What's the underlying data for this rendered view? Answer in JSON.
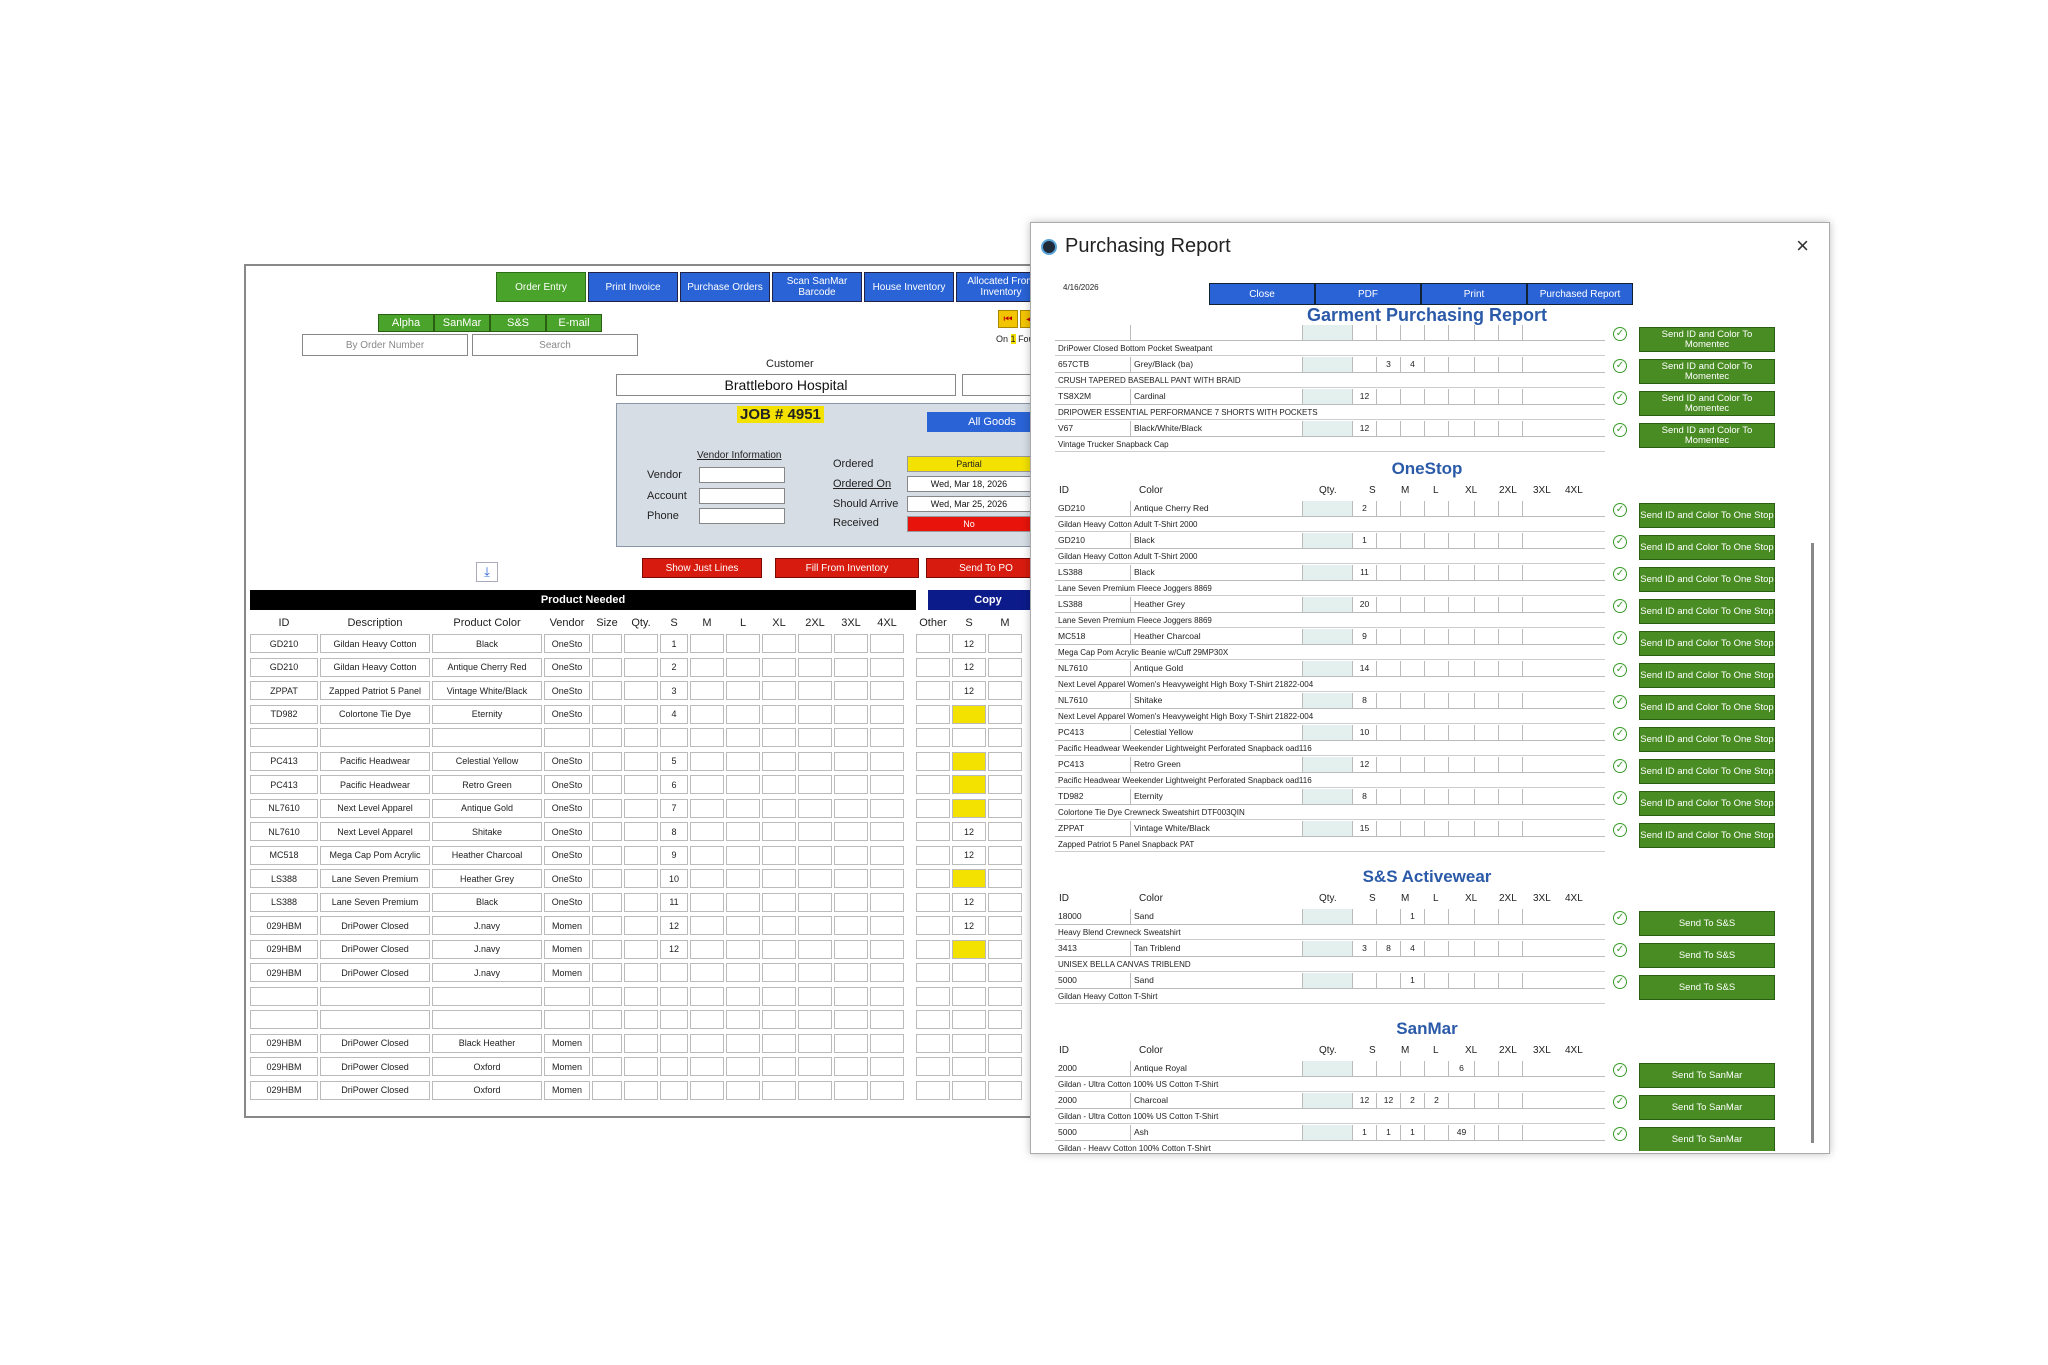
{
  "back": {
    "nav": [
      "Order Entry",
      "Print Invoice",
      "Purchase Orders",
      "Scan SanMar Barcode",
      "House Inventory",
      "Allocated From Inventory"
    ],
    "alpha": [
      "Alpha",
      "SanMar",
      "S&S",
      "E-mail"
    ],
    "search1": "By Order Number",
    "search2": "Search",
    "customer_label": "Customer",
    "customer": "Brattleboro Hospital",
    "job": "JOB # 4951",
    "all_goods": "All Goods",
    "on_text": "On",
    "on_num": "1",
    "four": "Four",
    "vendor_info": "Vendor Information",
    "vendor": "Vendor",
    "account": "Account",
    "phone": "Phone",
    "ordered": "Ordered",
    "ordered_val": "Partial",
    "ordered_on": "Ordered On",
    "ordered_on_val": "Wed, Mar 18, 2026",
    "should_arrive": "Should Arrive",
    "should_arrive_val": "Wed, Mar 25, 2026",
    "received": "Received",
    "received_val": "No",
    "show_lines": "Show Just Lines",
    "fill_inv": "Fill From Inventory",
    "send_po": "Send To PO",
    "product_needed": "Product Needed",
    "copy": "Copy",
    "headers": [
      "ID",
      "Description",
      "Product Color",
      "Vendor",
      "Size",
      "Qty.",
      "S",
      "M",
      "L",
      "XL",
      "2XL",
      "3XL",
      "4XL",
      "Other",
      "S",
      "M"
    ],
    "rows": [
      [
        "GD210",
        "Gildan Heavy Cotton",
        "Black",
        "OneSto",
        "1",
        "12",
        ""
      ],
      [
        "GD210",
        "Gildan Heavy Cotton",
        "Antique Cherry Red",
        "OneSto",
        "2",
        "12",
        ""
      ],
      [
        "ZPPAT",
        "Zapped Patriot 5 Panel",
        "Vintage White/Black",
        "OneSto",
        "3",
        "12",
        ""
      ],
      [
        "TD982",
        "Colortone Tie Dye",
        "Eternity",
        "OneSto",
        "4",
        "",
        "y"
      ],
      [
        "",
        "",
        "",
        "",
        "",
        "",
        ""
      ],
      [
        "PC413",
        "Pacific Headwear",
        "Celestial Yellow",
        "OneSto",
        "5",
        "",
        "y"
      ],
      [
        "PC413",
        "Pacific Headwear",
        "Retro Green",
        "OneSto",
        "6",
        "",
        "y"
      ],
      [
        "NL7610",
        "Next Level Apparel",
        "Antique Gold",
        "OneSto",
        "7",
        "",
        "y"
      ],
      [
        "NL7610",
        "Next Level Apparel",
        "Shitake",
        "OneSto",
        "8",
        "12",
        ""
      ],
      [
        "MC518",
        "Mega Cap Pom Acrylic",
        "Heather Charcoal",
        "OneSto",
        "9",
        "12",
        ""
      ],
      [
        "LS388",
        "Lane Seven Premium",
        "Heather Grey",
        "OneSto",
        "10",
        "",
        "y"
      ],
      [
        "LS388",
        "Lane Seven Premium",
        "Black",
        "OneSto",
        "11",
        "12",
        ""
      ],
      [
        "029HBM",
        "DriPower Closed",
        "J.navy",
        "Momen",
        "12",
        "12",
        ""
      ],
      [
        "029HBM",
        "DriPower Closed",
        "J.navy",
        "Momen",
        "12",
        "",
        "y"
      ],
      [
        "029HBM",
        "DriPower Closed",
        "J.navy",
        "Momen",
        "",
        "",
        ""
      ],
      [
        "",
        "",
        "",
        "",
        "",
        "",
        ""
      ],
      [
        "",
        "",
        "",
        "",
        "",
        "",
        ""
      ],
      [
        "029HBM",
        "DriPower Closed",
        "Black Heather",
        "Momen",
        "",
        "",
        ""
      ],
      [
        "029HBM",
        "DriPower Closed",
        "Oxford",
        "Momen",
        "",
        "",
        ""
      ],
      [
        "029HBM",
        "DriPower Closed",
        "Oxford",
        "Momen",
        "",
        "",
        ""
      ]
    ]
  },
  "modal": {
    "title": "Purchasing Report",
    "close": "×",
    "date": "4/16/2026",
    "toolbar": [
      "Close",
      "PDF",
      "Print",
      "Purchased Report"
    ],
    "report_title": "Garment Purchasing Report",
    "cols": [
      "ID",
      "Color",
      "Qty.",
      "S",
      "M",
      "L",
      "XL",
      "2XL",
      "3XL",
      "4XL"
    ],
    "top_items": [
      {
        "id": "",
        "color": "",
        "desc": "DriPower Closed Bottom Pocket Sweatpant",
        "s": "",
        "m": "",
        "l": "",
        "xl": "",
        "x2": "",
        "btn": "Send ID and Color To Momentec"
      },
      {
        "id": "657CTB",
        "color": "Grey/Black (ba)",
        "desc": "CRUSH TAPERED BASEBALL PANT WITH BRAID",
        "s": "",
        "m": "3",
        "l": "4",
        "xl": "",
        "x2": "",
        "btn": "Send ID and Color To Momentec"
      },
      {
        "id": "TS8X2M",
        "color": "Cardinal",
        "desc": "DRIPOWER ESSENTIAL PERFORMANCE 7 SHORTS WITH POCKETS",
        "s": "12",
        "m": "",
        "l": "",
        "xl": "",
        "x2": "",
        "btn": "Send ID and Color To Momentec"
      },
      {
        "id": "V67",
        "color": "Black/White/Black",
        "desc": "Vintage Trucker Snapback Cap",
        "s": "12",
        "m": "",
        "l": "",
        "xl": "",
        "x2": "",
        "btn": "Send ID and Color To Momentec"
      }
    ],
    "sections": [
      {
        "name": "OneStop",
        "items": [
          {
            "id": "GD210",
            "color": "Antique Cherry Red",
            "desc": "Gildan Heavy Cotton Adult T-Shirt 2000",
            "s": "2",
            "m": "",
            "l": "",
            "xl": "",
            "x2": "",
            "btn": "Send ID and Color To One Stop"
          },
          {
            "id": "GD210",
            "color": "Black",
            "desc": "Gildan Heavy Cotton Adult T-Shirt 2000",
            "s": "1",
            "m": "",
            "l": "",
            "xl": "",
            "x2": "",
            "btn": "Send ID and Color To One Stop"
          },
          {
            "id": "LS388",
            "color": "Black",
            "desc": "Lane Seven Premium Fleece Joggers 8869",
            "s": "11",
            "m": "",
            "l": "",
            "xl": "",
            "x2": "",
            "btn": "Send ID and Color To One Stop"
          },
          {
            "id": "LS388",
            "color": "Heather Grey",
            "desc": "Lane Seven Premium Fleece Joggers 8869",
            "s": "20",
            "m": "",
            "l": "",
            "xl": "",
            "x2": "",
            "btn": "Send ID and Color To One Stop"
          },
          {
            "id": "MC518",
            "color": "Heather Charcoal",
            "desc": "Mega Cap Pom Acrylic Beanie w/Cuff 29MP30X",
            "s": "9",
            "m": "",
            "l": "",
            "xl": "",
            "x2": "",
            "btn": "Send ID and Color To One Stop"
          },
          {
            "id": "NL7610",
            "color": "Antique Gold",
            "desc": "Next Level Apparel Women's Heavyweight High Boxy T-Shirt 21822-004",
            "s": "14",
            "m": "",
            "l": "",
            "xl": "",
            "x2": "",
            "btn": "Send ID and Color To One Stop"
          },
          {
            "id": "NL7610",
            "color": "Shitake",
            "desc": "Next Level Apparel Women's Heavyweight High Boxy T-Shirt 21822-004",
            "s": "8",
            "m": "",
            "l": "",
            "xl": "",
            "x2": "",
            "btn": "Send ID and Color To One Stop"
          },
          {
            "id": "PC413",
            "color": "Celestial Yellow",
            "desc": "Pacific Headwear Weekender Lightweight Perforated Snapback oad116",
            "s": "10",
            "m": "",
            "l": "",
            "xl": "",
            "x2": "",
            "btn": "Send ID and Color To One Stop"
          },
          {
            "id": "PC413",
            "color": "Retro Green",
            "desc": "Pacific Headwear Weekender Lightweight Perforated Snapback oad116",
            "s": "12",
            "m": "",
            "l": "",
            "xl": "",
            "x2": "",
            "btn": "Send ID and Color To One Stop"
          },
          {
            "id": "TD982",
            "color": "Eternity",
            "desc": "Colortone Tie Dye Crewneck Sweatshirt DTF003QIN",
            "s": "8",
            "m": "",
            "l": "",
            "xl": "",
            "x2": "",
            "btn": "Send ID and Color To One Stop"
          },
          {
            "id": "ZPPAT",
            "color": "Vintage White/Black",
            "desc": "Zapped Patriot 5 Panel Snapback PAT",
            "s": "15",
            "m": "",
            "l": "",
            "xl": "",
            "x2": "",
            "btn": "Send ID and Color To One Stop"
          }
        ]
      },
      {
        "name": "S&S Activewear",
        "items": [
          {
            "id": "18000",
            "color": "Sand",
            "desc": "Heavy Blend Crewneck Sweatshirt",
            "s": "",
            "m": "",
            "l": "1",
            "xl": "",
            "x2": "",
            "btn": "Send To S&S"
          },
          {
            "id": "3413",
            "color": "Tan Triblend",
            "desc": "UNISEX BELLA CANVAS TRIBLEND",
            "s": "3",
            "m": "8",
            "l": "4",
            "xl": "",
            "x2": "",
            "btn": "Send To S&S"
          },
          {
            "id": "5000",
            "color": "Sand",
            "desc": "Gildan Heavy Cotton T-Shirt",
            "s": "",
            "m": "",
            "l": "1",
            "xl": "",
            "x2": "",
            "btn": "Send To S&S"
          }
        ]
      },
      {
        "name": "SanMar",
        "items": [
          {
            "id": "2000",
            "color": "Antique Royal",
            "desc": "Gildan - Ultra Cotton 100% US Cotton T-Shirt",
            "s": "",
            "m": "",
            "l": "",
            "xl": "",
            "x2": "6",
            "btn": "Send To SanMar"
          },
          {
            "id": "2000",
            "color": "Charcoal",
            "desc": "Gildan - Ultra Cotton 100% US Cotton T-Shirt",
            "s": "12",
            "m": "12",
            "l": "2",
            "xl": "2",
            "x2": "",
            "btn": "Send To SanMar"
          },
          {
            "id": "5000",
            "color": "Ash",
            "desc": "Gildan - Heavy Cotton 100% Cotton T-Shirt",
            "s": "1",
            "m": "1",
            "l": "1",
            "xl": "",
            "x2": "49",
            "btn": "Send To SanMar"
          }
        ]
      }
    ]
  }
}
